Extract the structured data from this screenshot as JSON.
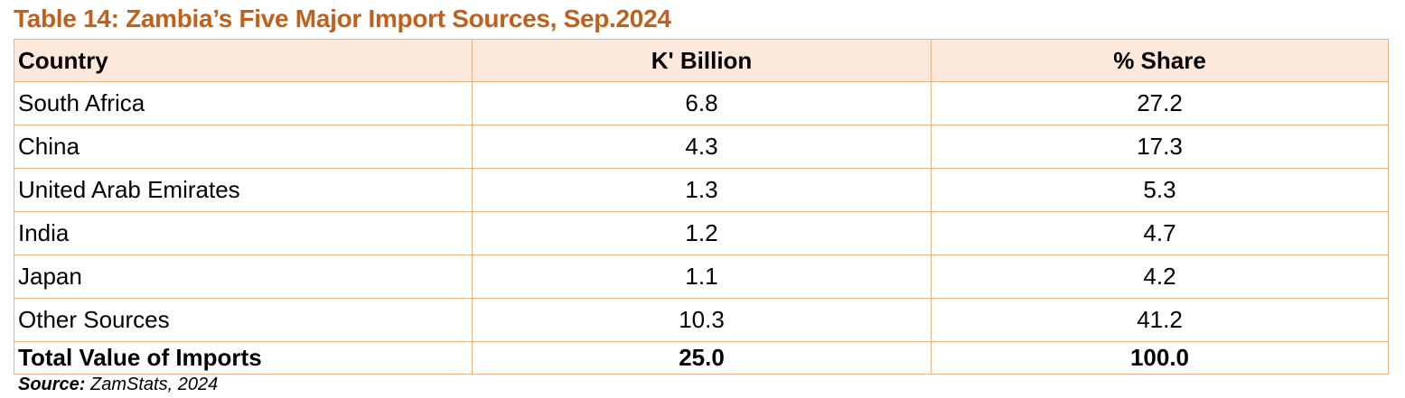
{
  "title": "Table 14: Zambia’s Five Major Import Sources, Sep.2024",
  "accent_color": "#c0601a",
  "header_bg_color": "#fde8dc",
  "table": {
    "headers": [
      "Country",
      "K' Billion",
      "% Share"
    ],
    "rows": [
      [
        "South Africa",
        "6.8",
        "27.2"
      ],
      [
        "China",
        "4.3",
        "17.3"
      ],
      [
        "United Arab Emirates",
        "1.3",
        "5.3"
      ],
      [
        "India",
        "1.2",
        "4.7"
      ],
      [
        "Japan",
        "1.1",
        "4.2"
      ],
      [
        "Other Sources",
        "10.3",
        "41.2"
      ]
    ],
    "total": [
      "Total Value of Imports",
      "25.0",
      "100.0"
    ]
  },
  "source": {
    "label": "Source:",
    "text": "ZamStats, 2024"
  }
}
